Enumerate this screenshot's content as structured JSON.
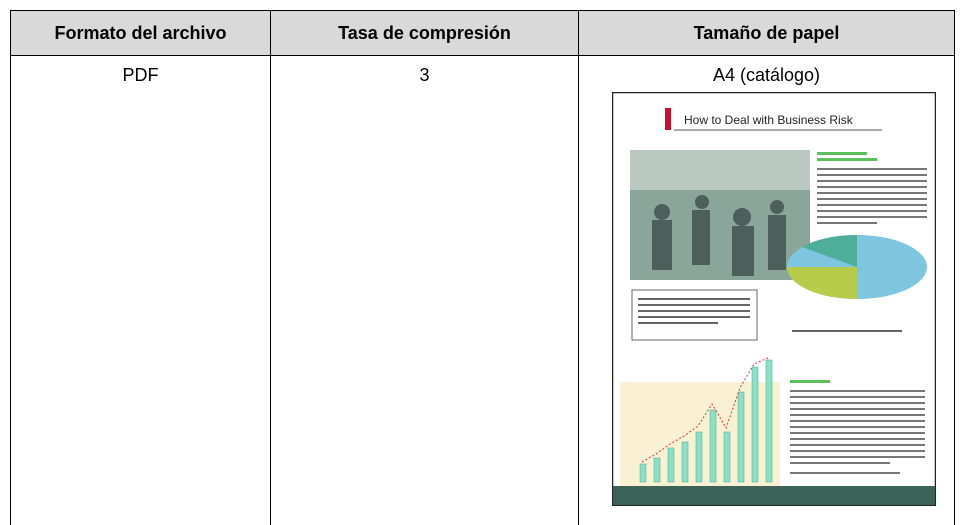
{
  "table": {
    "header": [
      "Formato del archivo",
      "Tasa de compresión",
      "Tamaño de papel"
    ],
    "rows": [
      [
        "PDF",
        "3",
        "A4 (catálogo)"
      ]
    ]
  },
  "thumbnail": {
    "title": "How to Deal with Business Risk"
  }
}
